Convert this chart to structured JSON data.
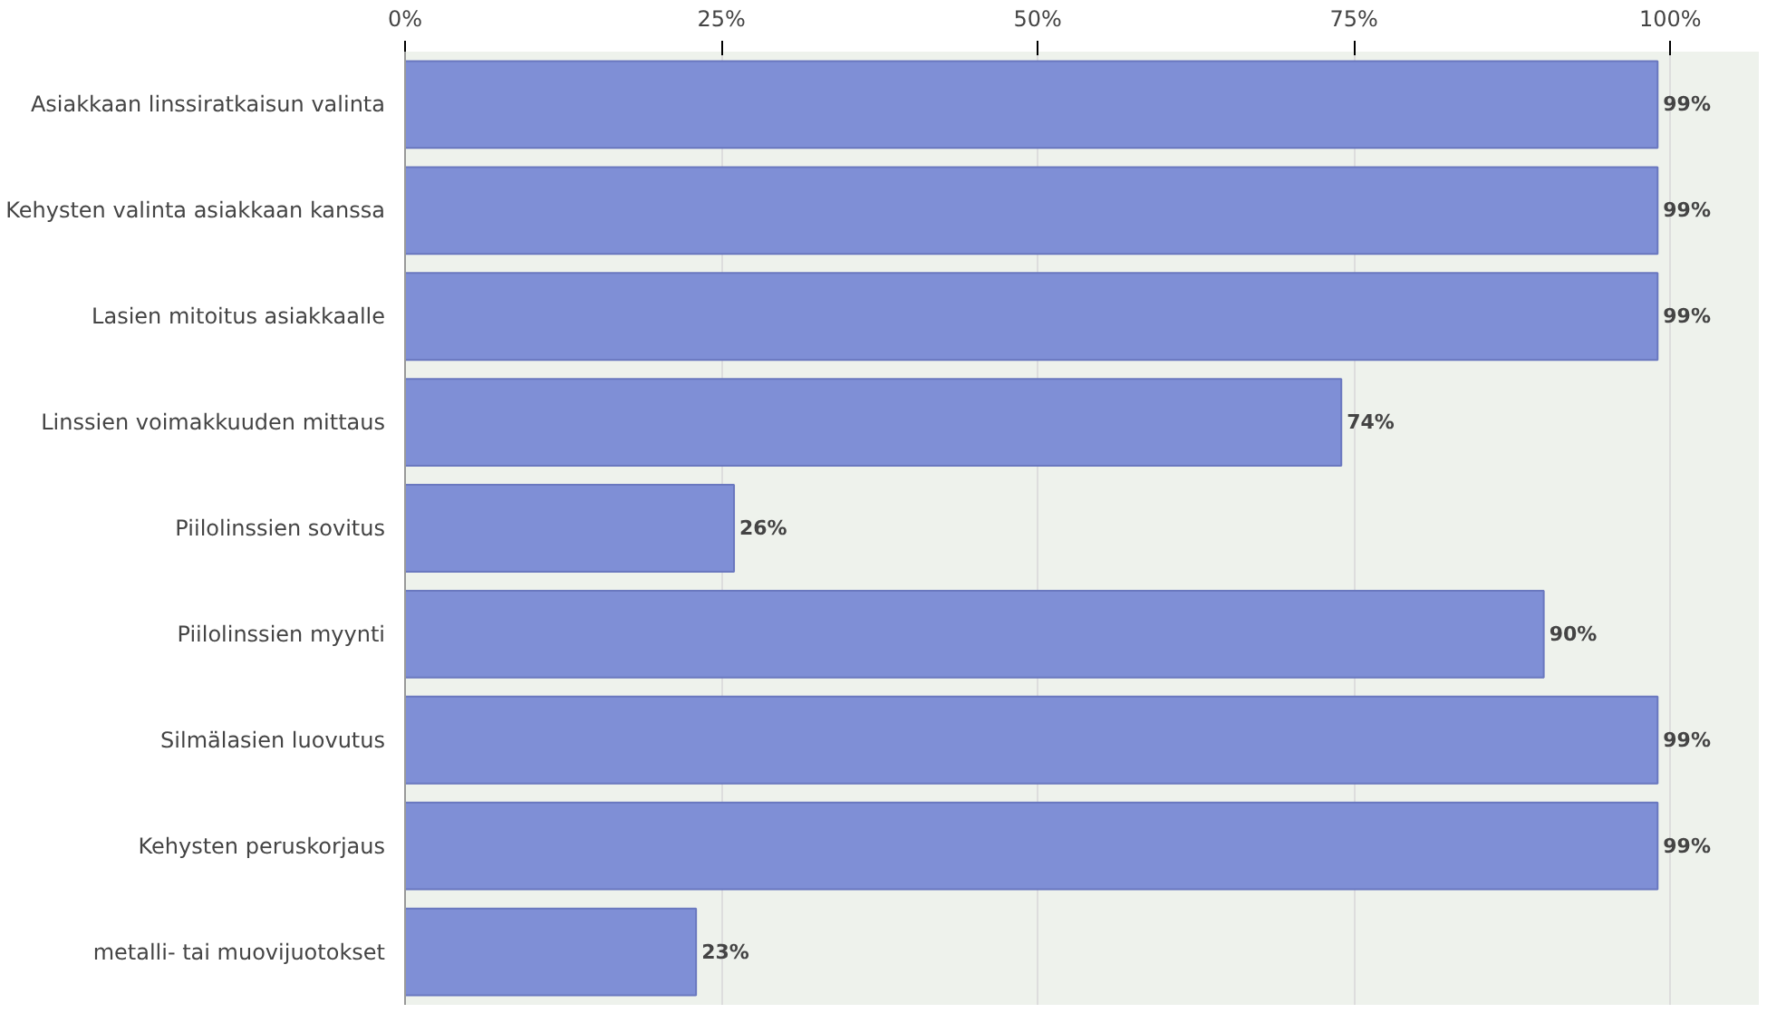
{
  "chart_data": {
    "type": "bar",
    "orientation": "horizontal",
    "categories": [
      "Asiakkaan linssiratkaisun valinta",
      "Kehysten valinta asiakkaan kanssa",
      "Lasien mitoitus asiakkaalle",
      "Linssien voimakkuuden mittaus",
      "Piilolinssien sovitus",
      "Piilolinssien myynti",
      "Silmälasien luovutus",
      "Kehysten peruskorjaus",
      "metalli- tai muovijuotokset"
    ],
    "values": [
      99,
      99,
      99,
      74,
      26,
      90,
      99,
      99,
      23
    ],
    "value_labels": [
      "99%",
      "99%",
      "99%",
      "74%",
      "26%",
      "90%",
      "99%",
      "99%",
      "23%"
    ],
    "color": "#7f8fd6",
    "xlim": [
      0,
      100
    ],
    "xticks": [
      {
        "value": 0,
        "label": "0%"
      },
      {
        "value": 25,
        "label": "25%"
      },
      {
        "value": 50,
        "label": "50%"
      },
      {
        "value": 75,
        "label": "75%"
      },
      {
        "value": 100,
        "label": "100%"
      }
    ],
    "grid": "x"
  }
}
